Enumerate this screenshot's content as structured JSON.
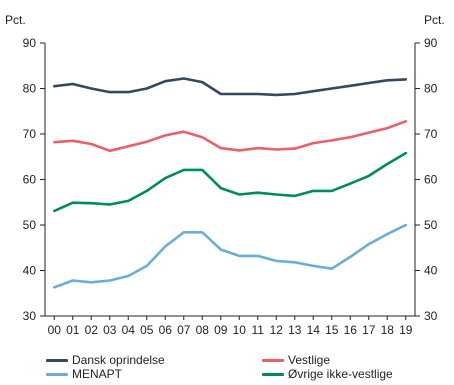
{
  "chart_data": {
    "type": "line",
    "y_unit_left": "Pct.",
    "y_unit_right": "Pct.",
    "x": [
      "00",
      "01",
      "02",
      "03",
      "04",
      "05",
      "06",
      "07",
      "08",
      "09",
      "10",
      "11",
      "12",
      "13",
      "14",
      "15",
      "16",
      "17",
      "18",
      "19"
    ],
    "ylim": [
      30,
      90
    ],
    "yticks": [
      30,
      40,
      50,
      60,
      70,
      80,
      90
    ],
    "grid": false,
    "legend_position": "bottom",
    "series": [
      {
        "name": "Dansk oprindelse",
        "color": "#34495e",
        "values": [
          80.5,
          81.0,
          80.0,
          79.2,
          79.2,
          80.0,
          81.6,
          82.2,
          81.4,
          78.8,
          78.8,
          78.8,
          78.6,
          78.8,
          79.4,
          80.0,
          80.6,
          81.2,
          81.8,
          82.0
        ]
      },
      {
        "name": "Vestlige",
        "color": "#e8616a",
        "values": [
          68.2,
          68.5,
          67.8,
          66.3,
          67.3,
          68.3,
          69.7,
          70.5,
          69.3,
          66.9,
          66.4,
          66.9,
          66.6,
          66.8,
          68.0,
          68.6,
          69.3,
          70.3,
          71.3,
          72.8
        ]
      },
      {
        "name": "MENAPT",
        "color": "#6aadd5",
        "values": [
          36.3,
          37.8,
          37.4,
          37.8,
          38.8,
          41.0,
          45.3,
          48.4,
          48.4,
          44.6,
          43.2,
          43.2,
          42.1,
          41.8,
          41.0,
          40.4,
          43.0,
          45.8,
          48.0,
          50.0
        ]
      },
      {
        "name": "Øvrige ikke-vestlige",
        "color": "#008a5e",
        "values": [
          53.1,
          54.9,
          54.8,
          54.5,
          55.3,
          57.5,
          60.3,
          62.1,
          62.1,
          58.1,
          56.7,
          57.1,
          56.7,
          56.4,
          57.5,
          57.5,
          59.1,
          60.8,
          63.4,
          65.8
        ]
      }
    ]
  }
}
